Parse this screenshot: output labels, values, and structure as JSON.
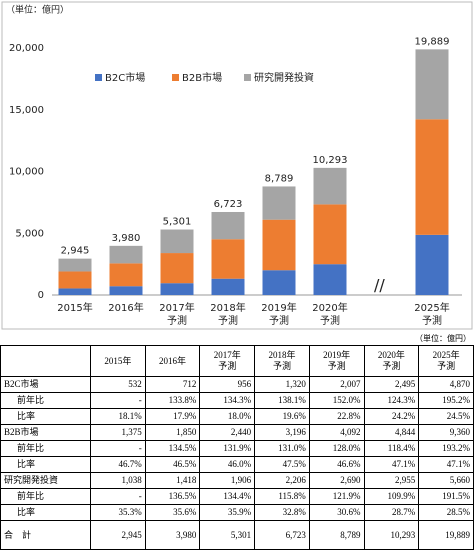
{
  "chart_data": {
    "type": "stacked-bar",
    "unit_label": "（単位：億円）",
    "categories": [
      "2015年",
      "2016年",
      "2017年",
      "2018年",
      "2019年",
      "2020年",
      "2025年"
    ],
    "forecast": [
      false,
      false,
      true,
      true,
      true,
      true,
      true
    ],
    "forecast_label": "予測",
    "series": [
      {
        "name": "B2C市場",
        "color": "#4472c4",
        "values": [
          532,
          712,
          956,
          1320,
          2007,
          2495,
          4870
        ]
      },
      {
        "name": "B2B市場",
        "color": "#ed7d31",
        "values": [
          1375,
          1850,
          2440,
          3196,
          4092,
          4844,
          9360
        ]
      },
      {
        "name": "研究開発投資",
        "color": "#a5a5a5",
        "values": [
          1038,
          1418,
          1906,
          2206,
          2690,
          2955,
          5660
        ]
      }
    ],
    "totals": [
      2945,
      3980,
      5301,
      6723,
      8789,
      10293,
      19889
    ],
    "total_labels": [
      "2,945",
      "3,980",
      "5,301",
      "6,723",
      "8,789",
      "10,293",
      "19,889"
    ],
    "ylim": [
      0,
      20000
    ],
    "yticks": [
      0,
      {
        "value": 5000,
        "label": "5,000"
      },
      {
        "value": 10000,
        "label": "10,000"
      },
      {
        "value": 15000,
        "label": "15,000"
      },
      {
        "value": 20000,
        "label": "20,000"
      }
    ],
    "grid": false,
    "legend": "top-left"
  },
  "table": {
    "unit_label": "（単位：億円）",
    "header": [
      [
        "2015年"
      ],
      [
        "2016年"
      ],
      [
        "2017年",
        "予測"
      ],
      [
        "2018年",
        "予測"
      ],
      [
        "2019年",
        "予測"
      ],
      [
        "2020年",
        "予測"
      ],
      [
        "2025年",
        "予測"
      ]
    ],
    "rows": [
      {
        "label": "B2C市場",
        "cells": [
          "532",
          "712",
          "956",
          "1,320",
          "2,007",
          "2,495",
          "4,870"
        ]
      },
      {
        "label": "前年比",
        "cells": [
          "-",
          "133.8%",
          "134.3%",
          "138.1%",
          "152.0%",
          "124.3%",
          "195.2%"
        ]
      },
      {
        "label": "比率",
        "cells": [
          "18.1%",
          "17.9%",
          "18.0%",
          "19.6%",
          "22.8%",
          "24.2%",
          "24.5%"
        ]
      },
      {
        "label": "B2B市場",
        "cells": [
          "1,375",
          "1,850",
          "2,440",
          "3,196",
          "4,092",
          "4,844",
          "9,360"
        ]
      },
      {
        "label": "前年比",
        "cells": [
          "-",
          "134.5%",
          "131.9%",
          "131.0%",
          "128.0%",
          "118.4%",
          "193.2%"
        ]
      },
      {
        "label": "比率",
        "cells": [
          "46.7%",
          "46.5%",
          "46.0%",
          "47.5%",
          "46.6%",
          "47.1%",
          "47.1%"
        ]
      },
      {
        "label": "研究開発投資",
        "cells": [
          "1,038",
          "1,418",
          "1,906",
          "2,206",
          "2,690",
          "2,955",
          "5,660"
        ]
      },
      {
        "label": "前年比",
        "cells": [
          "-",
          "136.5%",
          "134.4%",
          "115.8%",
          "121.9%",
          "109.9%",
          "191.5%"
        ]
      },
      {
        "label": "比率",
        "cells": [
          "35.3%",
          "35.6%",
          "35.9%",
          "32.8%",
          "30.6%",
          "28.7%",
          "28.5%"
        ]
      },
      {
        "label": "合　計",
        "cells": [
          "2,945",
          "3,980",
          "5,301",
          "6,723",
          "8,789",
          "10,293",
          "19,889"
        ]
      }
    ]
  }
}
